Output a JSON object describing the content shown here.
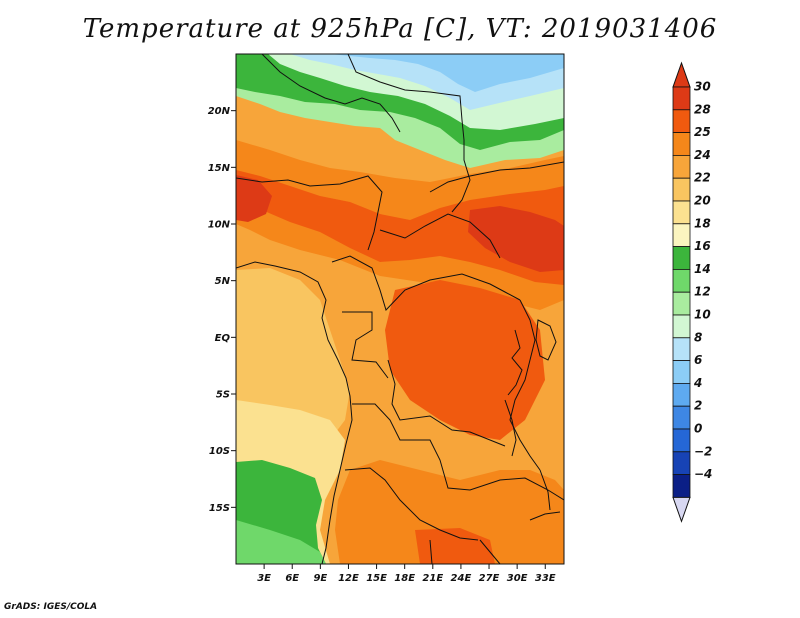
{
  "title": "Temperature at 925hPa [C], VT: 2019031406",
  "credit": "GrADS: IGES/COLA",
  "map": {
    "lon_range": [
      0,
      35
    ],
    "lat_range": [
      -20,
      25
    ],
    "lat_ticks": [
      {
        "value": 20,
        "label": "20N"
      },
      {
        "value": 15,
        "label": "15N"
      },
      {
        "value": 10,
        "label": "10N"
      },
      {
        "value": 5,
        "label": "5N"
      },
      {
        "value": 0,
        "label": "EQ"
      },
      {
        "value": -5,
        "label": "5S"
      },
      {
        "value": -10,
        "label": "10S"
      },
      {
        "value": -15,
        "label": "15S"
      }
    ],
    "lon_ticks": [
      {
        "value": 3,
        "label": "3E"
      },
      {
        "value": 6,
        "label": "6E"
      },
      {
        "value": 9,
        "label": "9E"
      },
      {
        "value": 12,
        "label": "12E"
      },
      {
        "value": 15,
        "label": "15E"
      },
      {
        "value": 18,
        "label": "18E"
      },
      {
        "value": 21,
        "label": "21E"
      },
      {
        "value": 24,
        "label": "24E"
      },
      {
        "value": 27,
        "label": "27E"
      },
      {
        "value": 30,
        "label": "30E"
      },
      {
        "value": 33,
        "label": "33E"
      }
    ]
  },
  "colorbar": {
    "labels": [
      "30",
      "28",
      "25",
      "24",
      "22",
      "20",
      "18",
      "16",
      "14",
      "12",
      "10",
      "8",
      "6",
      "4",
      "2",
      "0",
      "−2",
      "−4"
    ],
    "colors": [
      "#dd3a16",
      "#f05a0f",
      "#f5871a",
      "#f7a53a",
      "#f9c560",
      "#fbe190",
      "#fbf5c0",
      "#3cb53c",
      "#6fd86a",
      "#a9ec9f",
      "#d2f7d3",
      "#b6e2f8",
      "#8ccdf6",
      "#5eaaf0",
      "#3e87e4",
      "#2567d6",
      "#1743b5",
      "#0b1f86"
    ],
    "top_arrow_color": "#dd3a16",
    "bottom_arrow_color": "#d8d8f2"
  }
}
